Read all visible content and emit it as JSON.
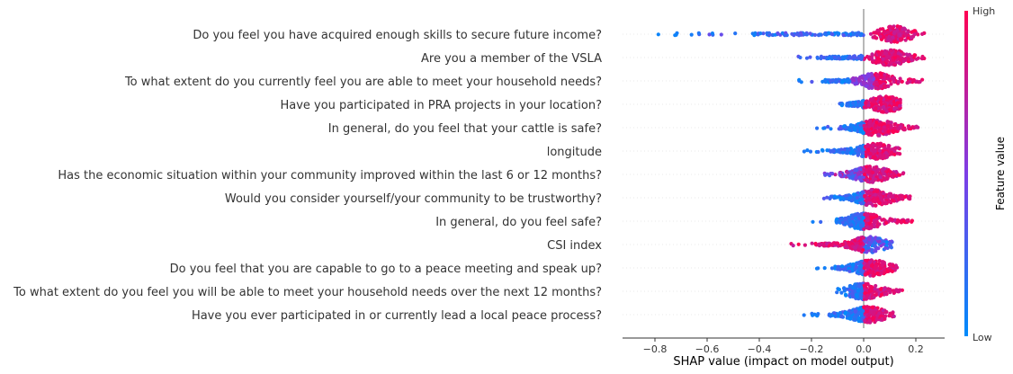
{
  "chart_data": {
    "type": "scatter",
    "subtype": "shap-beeswarm",
    "xlabel": "SHAP value (impact on model output)",
    "xlim": [
      -0.95,
      0.32
    ],
    "x_ticks": [
      -0.8,
      -0.6,
      -0.4,
      -0.2,
      0.0,
      0.2
    ],
    "x_tick_labels": [
      "−0.8",
      "−0.6",
      "−0.4",
      "−0.2",
      "0.0",
      "0.2"
    ],
    "zero_line": true,
    "colorbar": {
      "title": "Feature value",
      "high_label": "High",
      "low_label": "Low",
      "low_color": "#008bfb",
      "high_color": "#ff0052"
    },
    "features": [
      {
        "name": "Do you feel you have acquired enough skills to secure future income?",
        "min": -0.89,
        "max": 0.25,
        "lowColor": "neg",
        "spread": [
          [
            -0.89,
            -0.05,
            0.25
          ],
          [
            0.0,
            0.25,
            0.25
          ]
        ],
        "peak": 0.12
      },
      {
        "name": "Are you a member of the VSLA",
        "min": -0.29,
        "max": 0.24,
        "lowColor": "neg",
        "spread": [
          [
            -0.29,
            0.0,
            0.6
          ],
          [
            0.0,
            0.24,
            0.4
          ]
        ],
        "peak": 0.1
      },
      {
        "name": "To what extent do you currently feel you are able to meet your household needs?",
        "min": -0.31,
        "max": 0.23,
        "lowColor": "mid",
        "spread": [
          [
            -0.31,
            0.0,
            0.5
          ],
          [
            0.0,
            0.23,
            0.5
          ]
        ],
        "peak": 0.05
      },
      {
        "name": "Have you participated in PRA projects in your location?",
        "min": -0.13,
        "max": 0.14,
        "lowColor": "neg",
        "spread": [
          [
            -0.13,
            0.0,
            0.5
          ],
          [
            0.0,
            0.14,
            0.5
          ]
        ],
        "peak": 0.08
      },
      {
        "name": "In general, do you feel that your cattle is safe?",
        "min": -0.19,
        "max": 0.21,
        "lowColor": "neg",
        "spread": [
          [
            -0.19,
            0.0,
            0.5
          ],
          [
            0.0,
            0.21,
            0.5
          ]
        ],
        "peak": 0.05
      },
      {
        "name": "longitude",
        "min": -0.24,
        "max": 0.14,
        "lowColor": "neg",
        "spread": [
          [
            -0.24,
            0.02,
            0.6
          ],
          [
            0.02,
            0.14,
            0.4
          ]
        ],
        "peak": 0.05
      },
      {
        "name": "Has the economic situation within your community improved within the last 6 or 12 months?",
        "min": -0.19,
        "max": 0.16,
        "lowColor": "mix",
        "spread": [
          [
            -0.19,
            0.0,
            0.5
          ],
          [
            0.0,
            0.16,
            0.5
          ]
        ],
        "peak": 0.03
      },
      {
        "name": "Would you consider yourself/your community to be trustworthy?",
        "min": -0.18,
        "max": 0.18,
        "lowColor": "neg",
        "spread": [
          [
            -0.18,
            0.0,
            0.45
          ],
          [
            0.0,
            0.18,
            0.55
          ]
        ],
        "peak": 0.04
      },
      {
        "name": "In general, do you feel safe?",
        "min": -0.21,
        "max": 0.19,
        "lowColor": "neg",
        "spread": [
          [
            -0.21,
            0.0,
            0.45
          ],
          [
            0.0,
            0.19,
            0.55
          ]
        ],
        "peak": 0.0
      },
      {
        "name": "CSI index",
        "min": -0.35,
        "max": 0.11,
        "lowColor": "rev",
        "spread": [
          [
            -0.35,
            0.0,
            0.4
          ],
          [
            0.0,
            0.11,
            0.6
          ]
        ],
        "peak": 0.02
      },
      {
        "name": "Do you feel that you are capable to go to a peace meeting and speak up?",
        "min": -0.21,
        "max": 0.13,
        "lowColor": "neg",
        "spread": [
          [
            -0.21,
            0.0,
            0.4
          ],
          [
            0.0,
            0.13,
            0.6
          ]
        ],
        "peak": 0.03
      },
      {
        "name": "To what extent do you feel you will be able to meet your household needs  over the next 12 months?",
        "min": -0.11,
        "max": 0.15,
        "lowColor": "neg",
        "spread": [
          [
            -0.11,
            0.0,
            0.5
          ],
          [
            0.0,
            0.15,
            0.5
          ]
        ],
        "peak": 0.0
      },
      {
        "name": "Have you ever participated in or currently lead a local peace process?",
        "min": -0.24,
        "max": 0.12,
        "lowColor": "neg",
        "spread": [
          [
            -0.24,
            0.0,
            0.5
          ],
          [
            0.0,
            0.12,
            0.5
          ]
        ],
        "peak": 0.02
      }
    ]
  }
}
